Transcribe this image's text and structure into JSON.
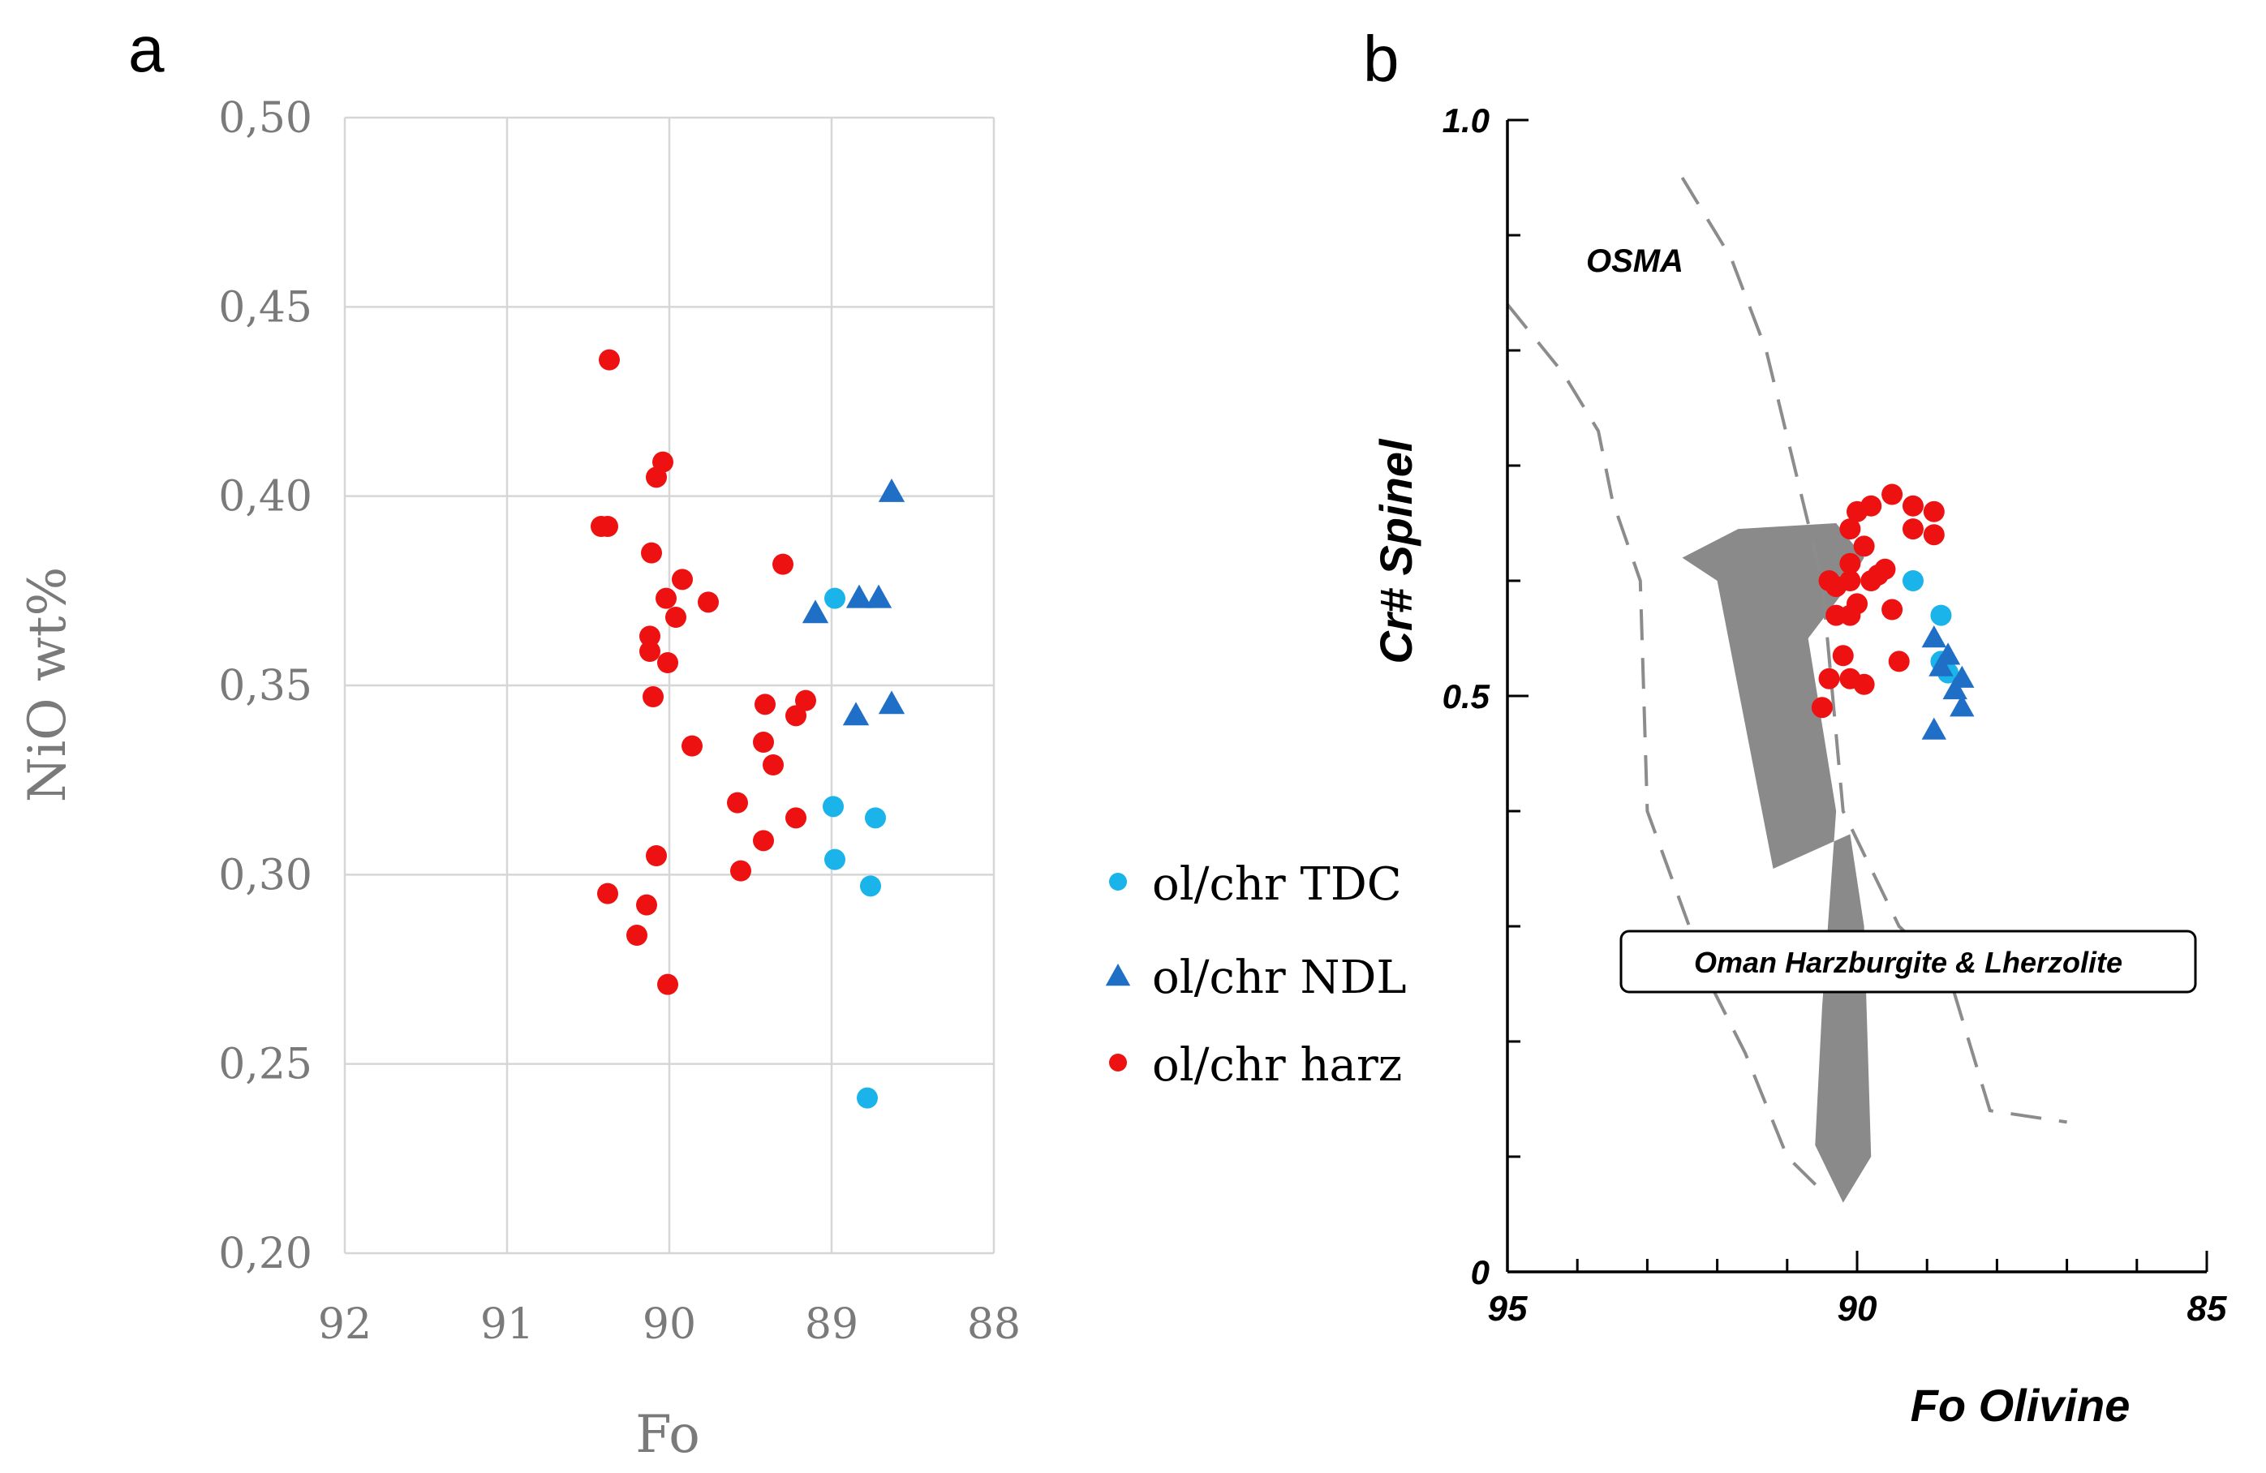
{
  "chart_data": [
    {
      "panel": "a",
      "type": "scatter",
      "xlabel": "Fo",
      "ylabel": "NiO wt%",
      "xlim": [
        92,
        88
      ],
      "ylim": [
        0.2,
        0.5
      ],
      "x_ticks": [
        "92",
        "91",
        "90",
        "89",
        "88"
      ],
      "y_ticks": [
        "0,50",
        "0,45",
        "0,40",
        "0,35",
        "0,30",
        "0,25",
        "0,20"
      ],
      "grid": true,
      "series": [
        {
          "name": "ol/chr harz",
          "color": "#ee1111",
          "marker": "circle",
          "points": [
            [
              90.37,
              0.436
            ],
            [
              90.04,
              0.409
            ],
            [
              90.08,
              0.405
            ],
            [
              90.38,
              0.392
            ],
            [
              90.42,
              0.392
            ],
            [
              90.11,
              0.385
            ],
            [
              89.92,
              0.378
            ],
            [
              90.02,
              0.373
            ],
            [
              89.76,
              0.372
            ],
            [
              89.96,
              0.368
            ],
            [
              90.12,
              0.363
            ],
            [
              90.12,
              0.359
            ],
            [
              90.01,
              0.356
            ],
            [
              89.3,
              0.382
            ],
            [
              90.1,
              0.347
            ],
            [
              89.16,
              0.346
            ],
            [
              89.41,
              0.345
            ],
            [
              89.22,
              0.342
            ],
            [
              89.42,
              0.335
            ],
            [
              89.86,
              0.334
            ],
            [
              89.36,
              0.329
            ],
            [
              89.58,
              0.319
            ],
            [
              89.22,
              0.315
            ],
            [
              89.42,
              0.309
            ],
            [
              90.08,
              0.305
            ],
            [
              89.56,
              0.301
            ],
            [
              90.38,
              0.295
            ],
            [
              90.14,
              0.292
            ],
            [
              90.2,
              0.284
            ],
            [
              90.01,
              0.271
            ]
          ]
        },
        {
          "name": "ol/chr TDC",
          "color": "#1ab3ea",
          "marker": "circle",
          "points": [
            [
              88.98,
              0.373
            ],
            [
              88.99,
              0.318
            ],
            [
              88.73,
              0.315
            ],
            [
              88.98,
              0.304
            ],
            [
              88.76,
              0.297
            ],
            [
              88.78,
              0.241
            ]
          ]
        },
        {
          "name": "ol/chr NDL",
          "color": "#1f6fc7",
          "marker": "triangle",
          "points": [
            [
              88.63,
              0.401
            ],
            [
              88.83,
              0.373
            ],
            [
              88.71,
              0.373
            ],
            [
              89.1,
              0.369
            ],
            [
              88.85,
              0.342
            ],
            [
              88.63,
              0.345
            ]
          ]
        }
      ]
    },
    {
      "panel": "b",
      "type": "scatter",
      "xlabel": "Fo Olivine",
      "ylabel": "Cr# Spinel",
      "xlim": [
        95,
        85
      ],
      "ylim": [
        0,
        1.0
      ],
      "x_ticks": [
        "95",
        "90",
        "85"
      ],
      "y_ticks": [
        "1.0",
        "0.5",
        "0"
      ],
      "grid": false,
      "annotations": [
        "OSMA",
        "Oman Harzburgite & Lherzolite"
      ],
      "shaded_field": {
        "label": "Oman Harzburgite & Lherzolite",
        "color": "#8a8a8a",
        "polygon": [
          [
            92.5,
            0.62
          ],
          [
            91.7,
            0.645
          ],
          [
            90.3,
            0.65
          ],
          [
            89.9,
            0.62
          ],
          [
            90.2,
            0.59
          ],
          [
            90.7,
            0.55
          ],
          [
            90.3,
            0.4
          ],
          [
            90.5,
            0.23
          ],
          [
            90.6,
            0.11
          ],
          [
            90.2,
            0.06
          ],
          [
            89.8,
            0.1
          ],
          [
            89.9,
            0.3
          ],
          [
            90.1,
            0.38
          ],
          [
            91.2,
            0.35
          ],
          [
            92.0,
            0.6
          ]
        ]
      },
      "dashed_boundaries": [
        [
          [
            95.0,
            0.84
          ],
          [
            94.2,
            0.78
          ],
          [
            93.7,
            0.73
          ],
          [
            93.5,
            0.67
          ],
          [
            93.1,
            0.6
          ],
          [
            93.0,
            0.4
          ],
          [
            92.4,
            0.3
          ],
          [
            92.1,
            0.25
          ],
          [
            91.6,
            0.19
          ],
          [
            91.0,
            0.1
          ],
          [
            90.5,
            0.07
          ]
        ],
        [
          [
            92.5,
            0.95
          ],
          [
            91.8,
            0.88
          ],
          [
            91.3,
            0.8
          ],
          [
            90.5,
            0.6
          ],
          [
            90.2,
            0.4
          ],
          [
            89.4,
            0.3
          ],
          [
            88.7,
            0.26
          ],
          [
            88.1,
            0.14
          ],
          [
            87.0,
            0.13
          ]
        ]
      ],
      "series": [
        {
          "name": "ol/chr harz",
          "color": "#ee1111",
          "marker": "circle",
          "points": [
            [
              89.5,
              0.675
            ],
            [
              89.8,
              0.665
            ],
            [
              89.2,
              0.665
            ],
            [
              88.9,
              0.66
            ],
            [
              90.0,
              0.66
            ],
            [
              90.1,
              0.645
            ],
            [
              89.2,
              0.645
            ],
            [
              88.9,
              0.64
            ],
            [
              89.9,
              0.63
            ],
            [
              90.1,
              0.615
            ],
            [
              89.6,
              0.61
            ],
            [
              89.7,
              0.605
            ],
            [
              90.4,
              0.6
            ],
            [
              89.8,
              0.6
            ],
            [
              90.1,
              0.6
            ],
            [
              90.3,
              0.595
            ],
            [
              90.0,
              0.58
            ],
            [
              90.3,
              0.57
            ],
            [
              90.1,
              0.57
            ],
            [
              89.5,
              0.575
            ],
            [
              90.2,
              0.535
            ],
            [
              89.4,
              0.53
            ],
            [
              90.4,
              0.515
            ],
            [
              90.1,
              0.515
            ],
            [
              89.9,
              0.51
            ],
            [
              90.5,
              0.49
            ]
          ]
        },
        {
          "name": "ol/chr TDC",
          "color": "#1ab3ea",
          "marker": "circle",
          "points": [
            [
              89.2,
              0.6
            ],
            [
              88.8,
              0.57
            ],
            [
              88.8,
              0.53
            ],
            [
              88.7,
              0.52
            ]
          ]
        },
        {
          "name": "ol/chr NDL",
          "color": "#1f6fc7",
          "marker": "triangle",
          "points": [
            [
              88.9,
              0.55
            ],
            [
              88.7,
              0.535
            ],
            [
              88.8,
              0.525
            ],
            [
              88.5,
              0.515
            ],
            [
              88.6,
              0.505
            ],
            [
              88.5,
              0.49
            ],
            [
              88.9,
              0.47
            ]
          ]
        }
      ]
    }
  ],
  "panel_labels": [
    "a",
    "b"
  ],
  "legend": [
    {
      "label": "ol/chr TDC",
      "marker": "circle",
      "color": "#1ab3ea"
    },
    {
      "label": "ol/chr NDL",
      "marker": "triangle",
      "color": "#1f6fc7"
    },
    {
      "label": "ol/chr harz",
      "marker": "circle",
      "color": "#ee1111"
    }
  ]
}
